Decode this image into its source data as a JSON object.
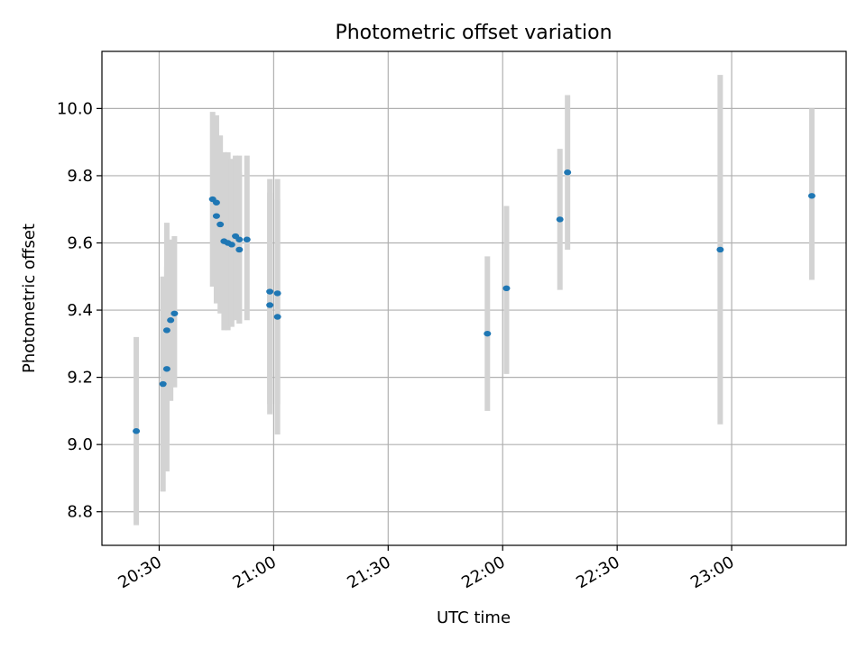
{
  "chart_data": {
    "type": "scatter",
    "title": "Photometric offset variation",
    "xlabel": "UTC time",
    "ylabel": "Photometric offset",
    "x_unit": "time of day (HH:MM)",
    "xlim": [
      "20:15",
      "23:30"
    ],
    "ylim": [
      8.7,
      10.17
    ],
    "x_ticks": [
      "20:30",
      "21:00",
      "21:30",
      "22:00",
      "22:30",
      "23:00"
    ],
    "y_ticks": [
      8.8,
      9.0,
      9.2,
      9.4,
      9.6,
      9.8,
      10.0
    ],
    "grid": true,
    "legend": "none",
    "colors": {
      "points": "#1f77b4",
      "error_bars": "#d3d3d3",
      "grid": "#b0b0b0"
    },
    "points": [
      {
        "x": "20:24",
        "y": 9.04,
        "err_low": 8.76,
        "err_high": 9.32
      },
      {
        "x": "20:31",
        "y": 9.18,
        "err_low": 8.86,
        "err_high": 9.5
      },
      {
        "x": "20:32",
        "y": 9.225,
        "err_low": 8.92,
        "err_high": 9.53
      },
      {
        "x": "20:32",
        "y": 9.34,
        "err_low": 9.01,
        "err_high": 9.66
      },
      {
        "x": "20:33",
        "y": 9.37,
        "err_low": 9.13,
        "err_high": 9.61
      },
      {
        "x": "20:34",
        "y": 9.39,
        "err_low": 9.17,
        "err_high": 9.62
      },
      {
        "x": "20:44",
        "y": 9.73,
        "err_low": 9.47,
        "err_high": 9.99
      },
      {
        "x": "20:45",
        "y": 9.72,
        "err_low": 9.47,
        "err_high": 9.98
      },
      {
        "x": "20:45",
        "y": 9.68,
        "err_low": 9.42,
        "err_high": 9.94
      },
      {
        "x": "20:46",
        "y": 9.655,
        "err_low": 9.39,
        "err_high": 9.92
      },
      {
        "x": "20:47",
        "y": 9.605,
        "err_low": 9.34,
        "err_high": 9.87
      },
      {
        "x": "20:48",
        "y": 9.6,
        "err_low": 9.34,
        "err_high": 9.87
      },
      {
        "x": "20:49",
        "y": 9.595,
        "err_low": 9.35,
        "err_high": 9.85
      },
      {
        "x": "20:50",
        "y": 9.62,
        "err_low": 9.37,
        "err_high": 9.86
      },
      {
        "x": "20:51",
        "y": 9.61,
        "err_low": 9.36,
        "err_high": 9.86
      },
      {
        "x": "20:51",
        "y": 9.58,
        "err_low": 9.36,
        "err_high": 9.81
      },
      {
        "x": "20:53",
        "y": 9.61,
        "err_low": 9.37,
        "err_high": 9.86
      },
      {
        "x": "20:59",
        "y": 9.455,
        "err_low": 9.12,
        "err_high": 9.79
      },
      {
        "x": "20:59",
        "y": 9.415,
        "err_low": 9.09,
        "err_high": 9.75
      },
      {
        "x": "21:01",
        "y": 9.45,
        "err_low": 9.12,
        "err_high": 9.79
      },
      {
        "x": "21:01",
        "y": 9.38,
        "err_low": 9.03,
        "err_high": 9.73
      },
      {
        "x": "21:56",
        "y": 9.33,
        "err_low": 9.1,
        "err_high": 9.56
      },
      {
        "x": "22:01",
        "y": 9.465,
        "err_low": 9.21,
        "err_high": 9.71
      },
      {
        "x": "22:15",
        "y": 9.67,
        "err_low": 9.46,
        "err_high": 9.88
      },
      {
        "x": "22:17",
        "y": 9.81,
        "err_low": 9.58,
        "err_high": 10.04
      },
      {
        "x": "22:57",
        "y": 9.58,
        "err_low": 9.06,
        "err_high": 10.1
      },
      {
        "x": "23:21",
        "y": 9.74,
        "err_low": 9.49,
        "err_high": 10.0
      }
    ]
  }
}
